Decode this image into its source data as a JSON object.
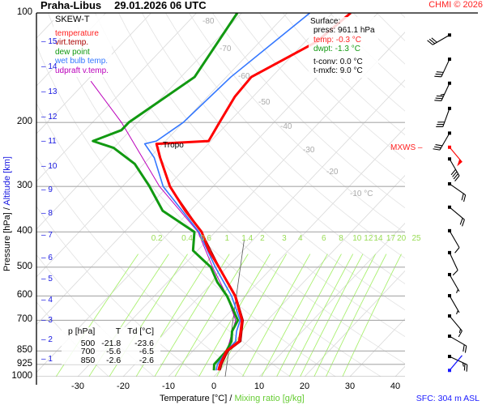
{
  "header": {
    "station": "Praha-Libus",
    "datetime": "29.01.2026 06 UTC",
    "copyright": "CHMI © 2026"
  },
  "legend": {
    "title": "SKEW-T",
    "items": [
      {
        "label": "temperature",
        "color": "#ff0000"
      },
      {
        "label": "virt.temp.",
        "color": "#aa0000"
      },
      {
        "label": "dew point",
        "color": "#119911"
      },
      {
        "label": "wet bulb temp.",
        "color": "#3377ff"
      },
      {
        "label": "udpraft v.temp.",
        "color": "#bb00bb"
      }
    ]
  },
  "surface": {
    "title": "Surface:",
    "press": "press: 961.1 hPa",
    "temp": "temp: -0.3 °C",
    "dwpt": "dwpt: -1.3 °C",
    "tconv": "t-conv: 0.0 °C",
    "tmxfc": "t-mxfc: 9.0 °C"
  },
  "summary_table": {
    "headers": [
      "p [hPa]",
      "T",
      "Td [°C]"
    ],
    "rows": [
      [
        "500",
        "-21.8",
        "-23.6"
      ],
      [
        "700",
        "-5.6",
        "-6.5"
      ],
      [
        "850",
        "-2.6",
        "-2.6"
      ]
    ]
  },
  "annotations": {
    "tropo": "Tropo",
    "mxws": "MXWS",
    "sfc": "SFC: 304 m ASL"
  },
  "chart_data": {
    "type": "line",
    "title": "SKEW-T",
    "xlabel": "Temperature [°C]",
    "xlabel_sep": "/",
    "xlabel2": "Mixing ratio [g/kg]",
    "ylabel": "Pressure [hPa]",
    "ylabel_sep": "/",
    "ylabel2": "Altitude [km]",
    "ylim": [
      1000,
      100
    ],
    "xlim": [
      -37,
      42
    ],
    "pressure_ticks": [
      "100",
      "200",
      "300",
      "400",
      "500",
      "600",
      "700",
      "850",
      "925",
      "1000"
    ],
    "temperature_ticks": [
      "-30",
      "-20",
      "-10",
      "0",
      "10",
      "20",
      "30",
      "40"
    ],
    "altitude_ticks_km": [
      "1",
      "2",
      "3",
      "4",
      "5",
      "6",
      "7",
      "8",
      "9",
      "10",
      "11",
      "12",
      "13",
      "14",
      "15"
    ],
    "isotherm_labels": [
      "-80",
      "-70",
      "-60",
      "-50",
      "-40",
      "-30",
      "-20",
      "-10 °C"
    ],
    "mixing_ratio_labels": [
      "0.2",
      "0.4",
      "0.6",
      "1",
      "1.4",
      "2",
      "3",
      "4",
      "6",
      "8",
      "10",
      "12",
      "14",
      "17",
      "20",
      "25"
    ],
    "series": [
      {
        "name": "temperature",
        "color": "#ff0000",
        "points": [
          [
            961,
            -0.3
          ],
          [
            925,
            -1.2
          ],
          [
            850,
            -2.6
          ],
          [
            800,
            -1.8
          ],
          [
            750,
            -3.6
          ],
          [
            700,
            -5.6
          ],
          [
            600,
            -12.2
          ],
          [
            500,
            -21.8
          ],
          [
            450,
            -27.5
          ],
          [
            400,
            -33
          ],
          [
            350,
            -41
          ],
          [
            300,
            -49.5
          ],
          [
            250,
            -57.7
          ],
          [
            229,
            -61.4
          ],
          [
            225,
            -50.5
          ],
          [
            200,
            -52
          ],
          [
            170,
            -54
          ],
          [
            150,
            -54.5
          ],
          [
            120,
            -47.5
          ],
          [
            100,
            -46
          ]
        ]
      },
      {
        "name": "virt.temp.",
        "color": "#aa0000",
        "points": [
          [
            961,
            0.1
          ],
          [
            925,
            -0.8
          ],
          [
            850,
            -2.2
          ],
          [
            800,
            -1.4
          ],
          [
            750,
            -3.3
          ],
          [
            700,
            -5.3
          ],
          [
            600,
            -12
          ],
          [
            500,
            -21.7
          ],
          [
            400,
            -33
          ],
          [
            300,
            -49.5
          ]
        ]
      },
      {
        "name": "dew point",
        "color": "#119911",
        "points": [
          [
            961,
            -1.3
          ],
          [
            925,
            -2.5
          ],
          [
            850,
            -2.6
          ],
          [
            800,
            -3.5
          ],
          [
            750,
            -5.5
          ],
          [
            700,
            -6.5
          ],
          [
            600,
            -14
          ],
          [
            550,
            -19
          ],
          [
            500,
            -23.6
          ],
          [
            450,
            -31
          ],
          [
            400,
            -34.6
          ],
          [
            350,
            -46
          ],
          [
            300,
            -54
          ],
          [
            260,
            -62
          ],
          [
            235,
            -70
          ],
          [
            225,
            -76
          ],
          [
            210,
            -72
          ],
          [
            200,
            -72
          ],
          [
            150,
            -67
          ],
          [
            100,
            -71
          ]
        ]
      },
      {
        "name": "wet bulb temp.",
        "color": "#3377ff",
        "points": [
          [
            961,
            -0.8
          ],
          [
            925,
            -1.8
          ],
          [
            850,
            -2.6
          ],
          [
            800,
            -2.6
          ],
          [
            750,
            -4.5
          ],
          [
            700,
            -6
          ],
          [
            600,
            -13
          ],
          [
            500,
            -22.6
          ],
          [
            400,
            -33.6
          ],
          [
            300,
            -51
          ],
          [
            250,
            -59
          ],
          [
            229,
            -64
          ],
          [
            225,
            -62
          ],
          [
            200,
            -60
          ],
          [
            150,
            -59
          ],
          [
            100,
            -55
          ]
        ]
      },
      {
        "name": "udpraft v.temp.",
        "color": "#bb00bb",
        "points": [
          [
            961,
            -0.3
          ],
          [
            850,
            -2.5
          ],
          [
            700,
            -7
          ],
          [
            600,
            -14
          ],
          [
            500,
            -23.2
          ],
          [
            400,
            -33.8
          ],
          [
            300,
            -51.8
          ],
          [
            200,
            -73.6
          ],
          [
            154,
            -89
          ]
        ]
      }
    ],
    "parcel_line": {
      "name": "surface dry adiabat",
      "color": "#555555",
      "points": [
        [
          1000,
          2.5
        ],
        [
          420,
          -22
        ]
      ]
    },
    "wind_barbs": [
      {
        "p": 115,
        "dir": 240,
        "kt": 30
      },
      {
        "p": 134,
        "dir": 205,
        "kt": 30
      },
      {
        "p": 156,
        "dir": 205,
        "kt": 35
      },
      {
        "p": 183,
        "dir": 200,
        "kt": 30
      },
      {
        "p": 214,
        "dir": 210,
        "kt": 30
      },
      {
        "p": 234,
        "dir": 140,
        "kt": 50,
        "color": "#ff0000"
      },
      {
        "p": 252,
        "dir": 150,
        "kt": 40
      },
      {
        "p": 295,
        "dir": 125,
        "kt": 20
      },
      {
        "p": 342,
        "dir": 130,
        "kt": 20
      },
      {
        "p": 397,
        "dir": 150,
        "kt": 10
      },
      {
        "p": 456,
        "dir": 155,
        "kt": 10
      },
      {
        "p": 524,
        "dir": 150,
        "kt": 5
      },
      {
        "p": 599,
        "dir": 150,
        "kt": 5
      },
      {
        "p": 681,
        "dir": 140,
        "kt": 15
      },
      {
        "p": 774,
        "dir": 120,
        "kt": 20
      },
      {
        "p": 880,
        "dir": 115,
        "kt": 25
      },
      {
        "p": 961,
        "dir": 40,
        "kt": 0,
        "color": "#1a1aff"
      }
    ]
  }
}
